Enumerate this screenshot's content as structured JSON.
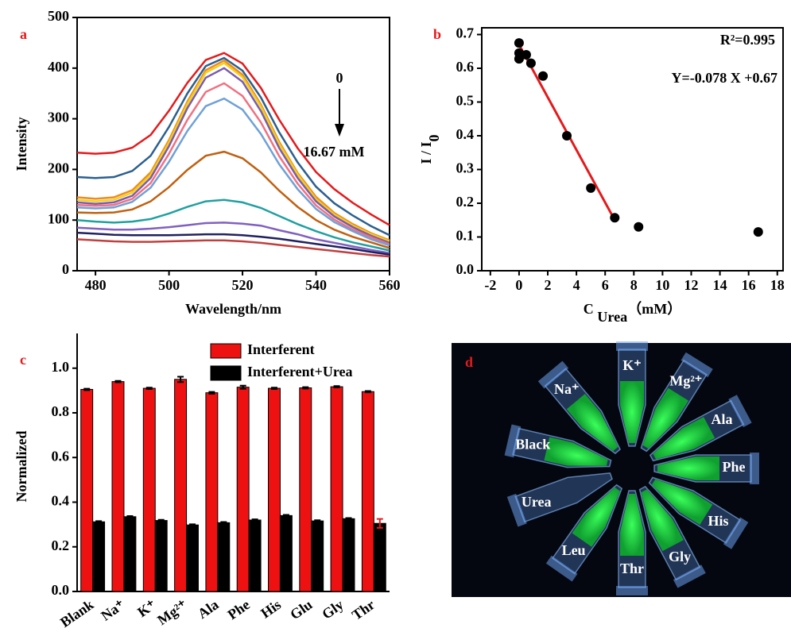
{
  "chart_data": [
    {
      "type": "line",
      "panel_label": "a",
      "xlabel": "Wavelength/nm",
      "ylabel": "Intensity",
      "annotations": [
        "0",
        "16.67 mM"
      ],
      "x": [
        475,
        480,
        485,
        490,
        495,
        500,
        505,
        510,
        515,
        520,
        525,
        530,
        535,
        540,
        545,
        550,
        555,
        560
      ],
      "xlim": [
        475,
        560
      ],
      "xticks": [
        480,
        500,
        520,
        540,
        560
      ],
      "ylim": [
        0,
        500
      ],
      "yticks": [
        0,
        100,
        200,
        300,
        400,
        500
      ],
      "series": [
        {
          "color": "#e41a1c",
          "values": [
            233,
            231,
            233,
            243,
            268,
            316,
            371,
            416,
            430,
            409,
            361,
            298,
            242,
            195,
            161,
            134,
            111,
            90
          ]
        },
        {
          "color": "#2b5f8f",
          "values": [
            185,
            183,
            185,
            197,
            227,
            284,
            350,
            404,
            420,
            395,
            342,
            273,
            214,
            166,
            133,
            109,
            88,
            70
          ]
        },
        {
          "color": "#f08a1d",
          "values": [
            145,
            142,
            145,
            159,
            194,
            258,
            334,
            396,
            415,
            387,
            328,
            254,
            193,
            146,
            114,
            92,
            74,
            60
          ]
        },
        {
          "color": "#f0d21a",
          "values": [
            140,
            137,
            140,
            154,
            189,
            253,
            329,
            391,
            410,
            382,
            324,
            250,
            190,
            141,
            111,
            89,
            72,
            58
          ]
        },
        {
          "color": "#7a5ab0",
          "values": [
            135,
            132,
            135,
            148,
            183,
            246,
            321,
            381,
            400,
            373,
            315,
            242,
            183,
            137,
            107,
            86,
            69,
            55
          ]
        },
        {
          "color": "#f07080",
          "values": [
            130,
            128,
            130,
            142,
            173,
            231,
            298,
            353,
            370,
            345,
            293,
            226,
            172,
            129,
            101,
            81,
            66,
            52
          ]
        },
        {
          "color": "#6fa1d6",
          "values": [
            125,
            123,
            125,
            136,
            164,
            215,
            276,
            325,
            340,
            318,
            270,
            210,
            161,
            122,
            96,
            78,
            62,
            50
          ]
        },
        {
          "color": "#c06010",
          "values": [
            115,
            114,
            115,
            121,
            137,
            165,
            199,
            227,
            235,
            222,
            194,
            158,
            126,
            100,
            81,
            67,
            56,
            45
          ]
        },
        {
          "color": "#20a0a0",
          "values": [
            100,
            97,
            95,
            97,
            102,
            113,
            126,
            137,
            140,
            135,
            124,
            108,
            92,
            78,
            66,
            56,
            48,
            40
          ]
        },
        {
          "color": "#8060c0",
          "values": [
            85,
            83,
            81,
            81,
            83,
            86,
            90,
            94,
            95,
            93,
            89,
            80,
            72,
            62,
            55,
            48,
            41,
            35
          ]
        },
        {
          "color": "#202060",
          "values": [
            75,
            73,
            71,
            70,
            70,
            70,
            71,
            72,
            72,
            70,
            67,
            63,
            58,
            53,
            48,
            43,
            37,
            32
          ]
        },
        {
          "color": "#c04040",
          "values": [
            62,
            60,
            58,
            57,
            57,
            58,
            59,
            60,
            60,
            58,
            55,
            51,
            47,
            43,
            39,
            35,
            31,
            28
          ]
        }
      ]
    },
    {
      "type": "scatter",
      "panel_label": "b",
      "xlabel": {
        "main": "C ",
        "sub": "Urea",
        "unit": "（mM）"
      },
      "ylabel": {
        "main": "I / I",
        "sub": "0"
      },
      "annotations": [
        "R²=0.995",
        "Y=-0.078 X +0.67"
      ],
      "x": [
        0,
        0,
        0,
        0.5,
        0.83,
        1.67,
        3.33,
        5,
        6.67,
        8.33,
        16.67
      ],
      "values": [
        0.675,
        0.645,
        0.628,
        0.64,
        0.615,
        0.577,
        0.4,
        0.245,
        0.157,
        0.13,
        0.115
      ],
      "color": "#000000",
      "fit": {
        "x": [
          0,
          6.67
        ],
        "values": [
          0.67,
          0.15
        ],
        "color": "#e41a1c"
      },
      "xlim": [
        -2.6,
        18.4
      ],
      "xticks": [
        -2,
        0,
        2,
        4,
        6,
        8,
        10,
        12,
        14,
        16,
        18
      ],
      "ylim": [
        0,
        0.72
      ],
      "yticks": [
        {
          "value": 0,
          "label": "0.0"
        },
        0.1,
        0.2,
        0.3,
        0.4,
        0.5,
        0.6,
        0.7
      ]
    },
    {
      "type": "bar",
      "panel_label": "c",
      "ylabel": "Normalized",
      "legend": "upper right",
      "categories": [
        "Blank",
        "Na⁺",
        "K⁺",
        "Mg²⁺",
        "Ala",
        "Phe",
        "His",
        "Glu",
        "Gly",
        "Thr"
      ],
      "series": [
        {
          "name": "Interferent",
          "color": "#ee1111",
          "values": [
            0.905,
            0.94,
            0.91,
            0.95,
            0.89,
            0.915,
            0.91,
            0.912,
            0.917,
            0.895
          ],
          "errors": [
            0.003,
            0.003,
            0.003,
            0.012,
            0.004,
            0.007,
            0.003,
            0.003,
            0.003,
            0.003
          ]
        },
        {
          "name": "Interferent+Urea",
          "color": "#000000",
          "values": [
            0.312,
            0.335,
            0.318,
            0.298,
            0.308,
            0.32,
            0.34,
            0.316,
            0.326,
            0.305
          ],
          "errors": [
            0.003,
            0.003,
            0.003,
            0.003,
            0.003,
            0.003,
            0.003,
            0.003,
            0.003,
            0.02
          ]
        }
      ],
      "ylim": [
        0,
        1.12
      ],
      "yticks": [
        {
          "value": 0,
          "label": "0.0"
        },
        0.2,
        0.4,
        0.6,
        0.8,
        {
          "value": 1,
          "label": "1.0"
        }
      ]
    }
  ],
  "photo": {
    "panel_label": "d",
    "tubes": [
      "K⁺",
      "Mg²⁺",
      "Ala",
      "Phe",
      "His",
      "Gly",
      "Thr",
      "Leu",
      "Urea",
      "Black",
      "Na⁺"
    ]
  }
}
